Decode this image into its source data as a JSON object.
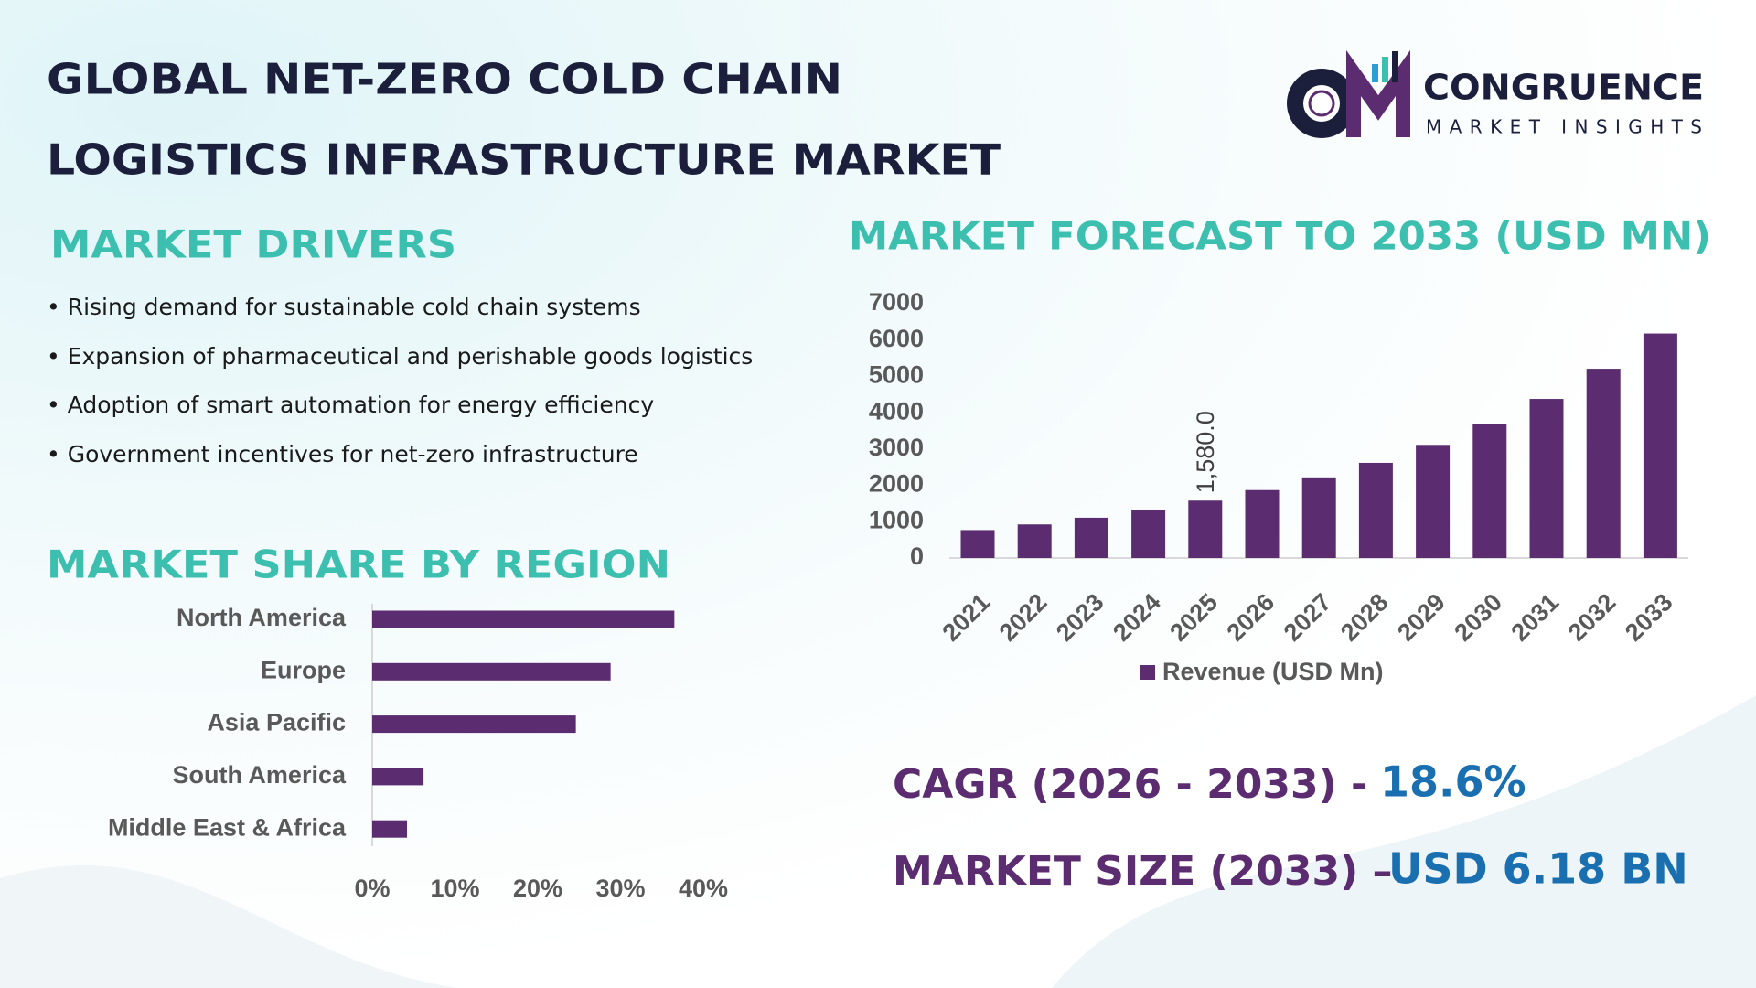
{
  "header": {
    "title_lines": [
      "GLOBAL NET-ZERO COLD CHAIN",
      "LOGISTICS INFRASTRUCTURE MARKET"
    ],
    "logo": {
      "name": "CONGRUENCE",
      "tagline": "MARKET INSIGHTS"
    }
  },
  "drivers": {
    "title": "MARKET DRIVERS",
    "items": [
      "• Rising demand for sustainable cold chain systems",
      "• Expansion of pharmaceutical and perishable goods logistics",
      "• Adoption of smart automation for energy efficiency",
      "• Government incentives for net-zero infrastructure"
    ]
  },
  "chart_data": [
    {
      "type": "bar",
      "title": "MARKET FORECAST TO 2033 (USD MN)",
      "categories": [
        "2021",
        "2022",
        "2023",
        "2024",
        "2025",
        "2026",
        "2027",
        "2028",
        "2029",
        "2030",
        "2031",
        "2032",
        "2033"
      ],
      "series": [
        {
          "name": "Revenue (USD Mn)",
          "color": "#5b2c6f",
          "values": [
            770,
            925,
            1110,
            1325,
            1580,
            1870,
            2220,
            2620,
            3115,
            3700,
            4380,
            5210,
            6180
          ],
          "value_labels": [
            null,
            null,
            null,
            null,
            "1,580.0",
            null,
            null,
            null,
            null,
            null,
            null,
            null,
            null
          ]
        }
      ],
      "ylim": [
        0,
        7000
      ],
      "yticks": [
        0,
        1000,
        2000,
        3000,
        4000,
        5000,
        6000,
        7000
      ],
      "grid": false,
      "legend": "bottom"
    },
    {
      "type": "barh",
      "title": "MARKET SHARE BY REGION",
      "categories": [
        "North America",
        "Europe",
        "Asia Pacific",
        "South America",
        "Middle East & Africa"
      ],
      "values": [
        36.5,
        28.8,
        24.6,
        6.2,
        4.2
      ],
      "color": "#5b2c6f",
      "xlim": [
        0,
        40
      ],
      "xticks": [
        {
          "value": 0,
          "label": "0%"
        },
        {
          "value": 10,
          "label": "10%"
        },
        {
          "value": 20,
          "label": "20%"
        },
        {
          "value": 30,
          "label": "30%"
        },
        {
          "value": 40,
          "label": "40%"
        }
      ],
      "grid": false
    }
  ],
  "stats": [
    {
      "label": "CAGR (2026 - 2033) -",
      "value": "18.6%"
    },
    {
      "label": "MARKET SIZE (2033) –",
      "value": "USD 6.18 BN"
    }
  ]
}
